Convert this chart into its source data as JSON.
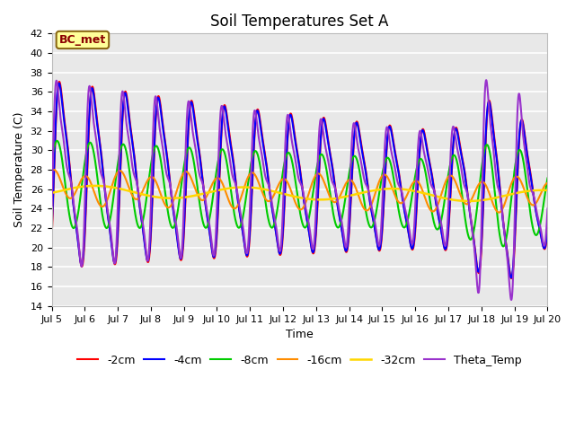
{
  "title": "Soil Temperatures Set A",
  "xlabel": "Time",
  "ylabel": "Soil Temperature (C)",
  "ylim": [
    14,
    42
  ],
  "yticks": [
    14,
    16,
    18,
    20,
    22,
    24,
    26,
    28,
    30,
    32,
    34,
    36,
    38,
    40,
    42
  ],
  "annotation_text": "BC_met",
  "annotation_fg": "#8B0000",
  "annotation_bg": "#FFFF99",
  "annotation_edge": "#8B6914",
  "plot_bg": "#E8E8E8",
  "series_colors": {
    "-2cm": "#FF0000",
    "-4cm": "#0000FF",
    "-8cm": "#00CC00",
    "-16cm": "#FF8C00",
    "-32cm": "#FFD700",
    "Theta_Temp": "#9932CC"
  },
  "series_lw": 1.5,
  "xtick_labels": [
    "Jul 5",
    "Jul 6",
    "Jul 7",
    "Jul 8",
    "Jul 9",
    "Jul 10",
    "Jul 11",
    "Jul 12",
    "Jul 13",
    "Jul 14",
    "Jul 15",
    "Jul 16",
    "Jul 17",
    "Jul 18",
    "Jul 19",
    "Jul 20"
  ],
  "grid_color": "#FFFFFF",
  "title_fontsize": 12,
  "label_fontsize": 9,
  "tick_fontsize": 8,
  "legend_fontsize": 9
}
